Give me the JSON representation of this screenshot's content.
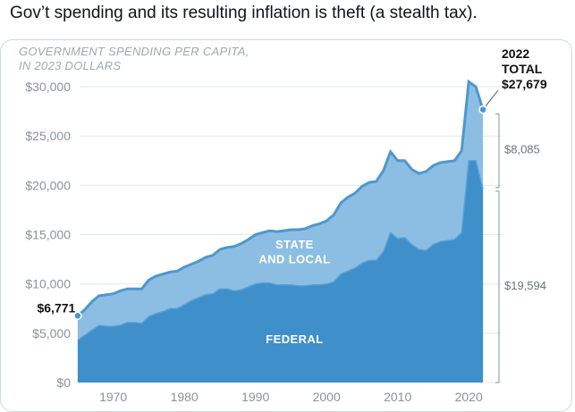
{
  "post": {
    "caption": "Gov’t spending and its resulting inflation is theft (a stealth tax)."
  },
  "chart_data": {
    "type": "area",
    "subtitle_line1": "GOVERNMENT SPENDING PER CAPITA,",
    "subtitle_line2": "IN 2023 DOLLARS",
    "ylim": [
      0,
      32000
    ],
    "xlim": [
      1963,
      2024
    ],
    "yticks": [
      {
        "value": 0,
        "label": "$0"
      },
      {
        "value": 5000,
        "label": "$5,000"
      },
      {
        "value": 10000,
        "label": "$10,000"
      },
      {
        "value": 15000,
        "label": "$15,000"
      },
      {
        "value": 20000,
        "label": "$20,000"
      },
      {
        "value": 25000,
        "label": "$25,000"
      },
      {
        "value": 30000,
        "label": "$30,000"
      }
    ],
    "xticks": [
      {
        "value": 1970,
        "label": "1970"
      },
      {
        "value": 1980,
        "label": "1980"
      },
      {
        "value": 1990,
        "label": "1990"
      },
      {
        "value": 2000,
        "label": "2000"
      },
      {
        "value": 2010,
        "label": "2010"
      },
      {
        "value": 2020,
        "label": "2020"
      }
    ],
    "x": [
      1965,
      1966,
      1967,
      1968,
      1969,
      1970,
      1971,
      1972,
      1973,
      1974,
      1975,
      1976,
      1977,
      1978,
      1979,
      1980,
      1981,
      1982,
      1983,
      1984,
      1985,
      1986,
      1987,
      1988,
      1989,
      1990,
      1991,
      1992,
      1993,
      1994,
      1995,
      1996,
      1997,
      1998,
      1999,
      2000,
      2001,
      2002,
      2003,
      2004,
      2005,
      2006,
      2007,
      2008,
      2009,
      2010,
      2011,
      2012,
      2013,
      2014,
      2015,
      2016,
      2017,
      2018,
      2019,
      2020,
      2021,
      2022
    ],
    "series": [
      {
        "name": "Federal",
        "label": "FEDERAL",
        "color": "#3f8fcb",
        "values": [
          4300,
          4800,
          5300,
          5800,
          5700,
          5700,
          5800,
          6100,
          6100,
          6000,
          6700,
          7000,
          7200,
          7500,
          7500,
          7900,
          8300,
          8600,
          8900,
          9000,
          9500,
          9500,
          9300,
          9400,
          9700,
          10000,
          10100,
          10100,
          9900,
          9900,
          9900,
          9800,
          9800,
          9900,
          9900,
          10000,
          10200,
          11000,
          11300,
          11600,
          12100,
          12400,
          12400,
          13300,
          15200,
          14600,
          14700,
          14000,
          13500,
          13400,
          14000,
          14300,
          14400,
          14500,
          15200,
          22500,
          22500,
          19594
        ]
      },
      {
        "name": "State and local",
        "label_line1": "STATE",
        "label_line2": "AND LOCAL",
        "color": "#8cbee3",
        "values": [
          2471,
          2600,
          2900,
          3000,
          3200,
          3300,
          3500,
          3400,
          3400,
          3500,
          3700,
          3800,
          3800,
          3700,
          3800,
          3800,
          3700,
          3700,
          3800,
          3900,
          4000,
          4200,
          4500,
          4700,
          4800,
          5000,
          5100,
          5300,
          5400,
          5500,
          5600,
          5700,
          5800,
          6000,
          6200,
          6400,
          6800,
          7200,
          7500,
          7600,
          7800,
          7900,
          8000,
          8200,
          8200,
          7900,
          7800,
          7600,
          7700,
          8000,
          8000,
          8000,
          8000,
          8000,
          8300,
          8000,
          7500,
          8085
        ]
      }
    ],
    "annotations": {
      "start_value": "$6,771",
      "end_year_label": "2022",
      "total_label": "TOTAL",
      "end_total": "$27,679",
      "state_local_bracket": "$8,085",
      "federal_bracket": "$19,594"
    }
  }
}
